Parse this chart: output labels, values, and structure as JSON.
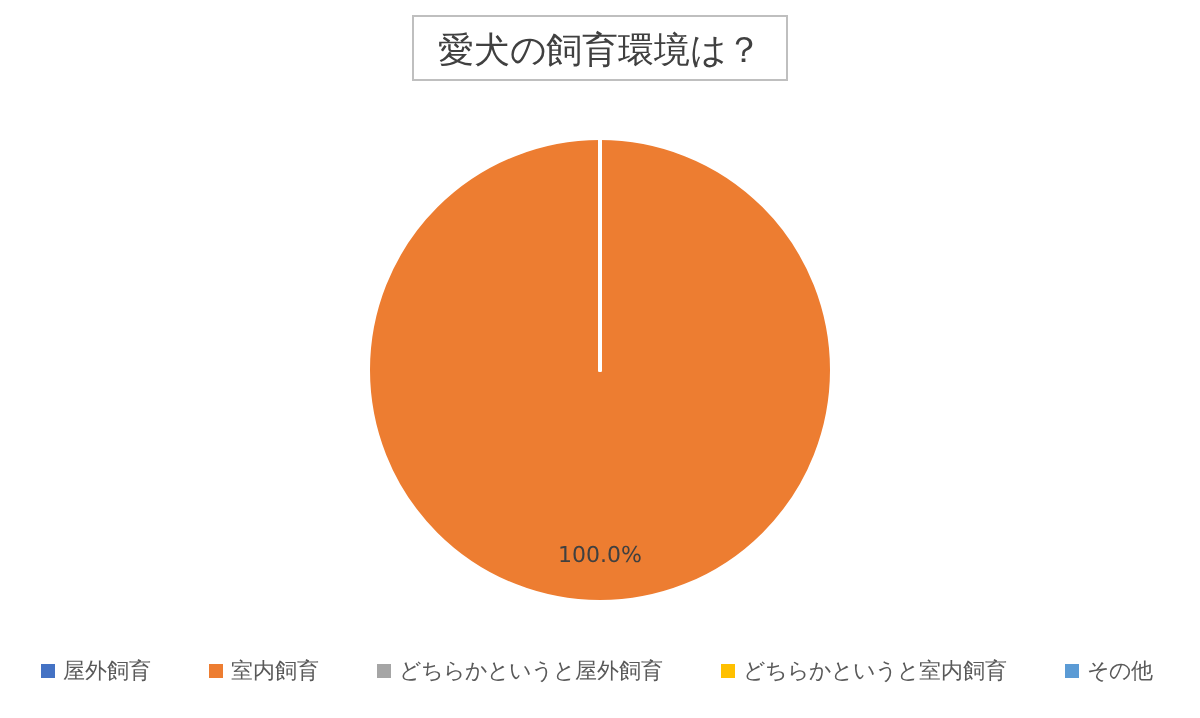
{
  "chart_data": {
    "type": "pie",
    "title": "愛犬の飼育環境は？",
    "categories": [
      "屋外飼育",
      "室内飼育",
      "どちらかというと屋外飼育",
      "どちらかというと室内飼育",
      "その他"
    ],
    "values": [
      0,
      100,
      0,
      0,
      0
    ],
    "colors": [
      "#4472c4",
      "#ed7d31",
      "#a5a5a5",
      "#ffc000",
      "#5b9bd5"
    ],
    "value_labels": [
      null,
      "100.0%",
      null,
      null,
      null
    ],
    "legend": "bottom"
  }
}
